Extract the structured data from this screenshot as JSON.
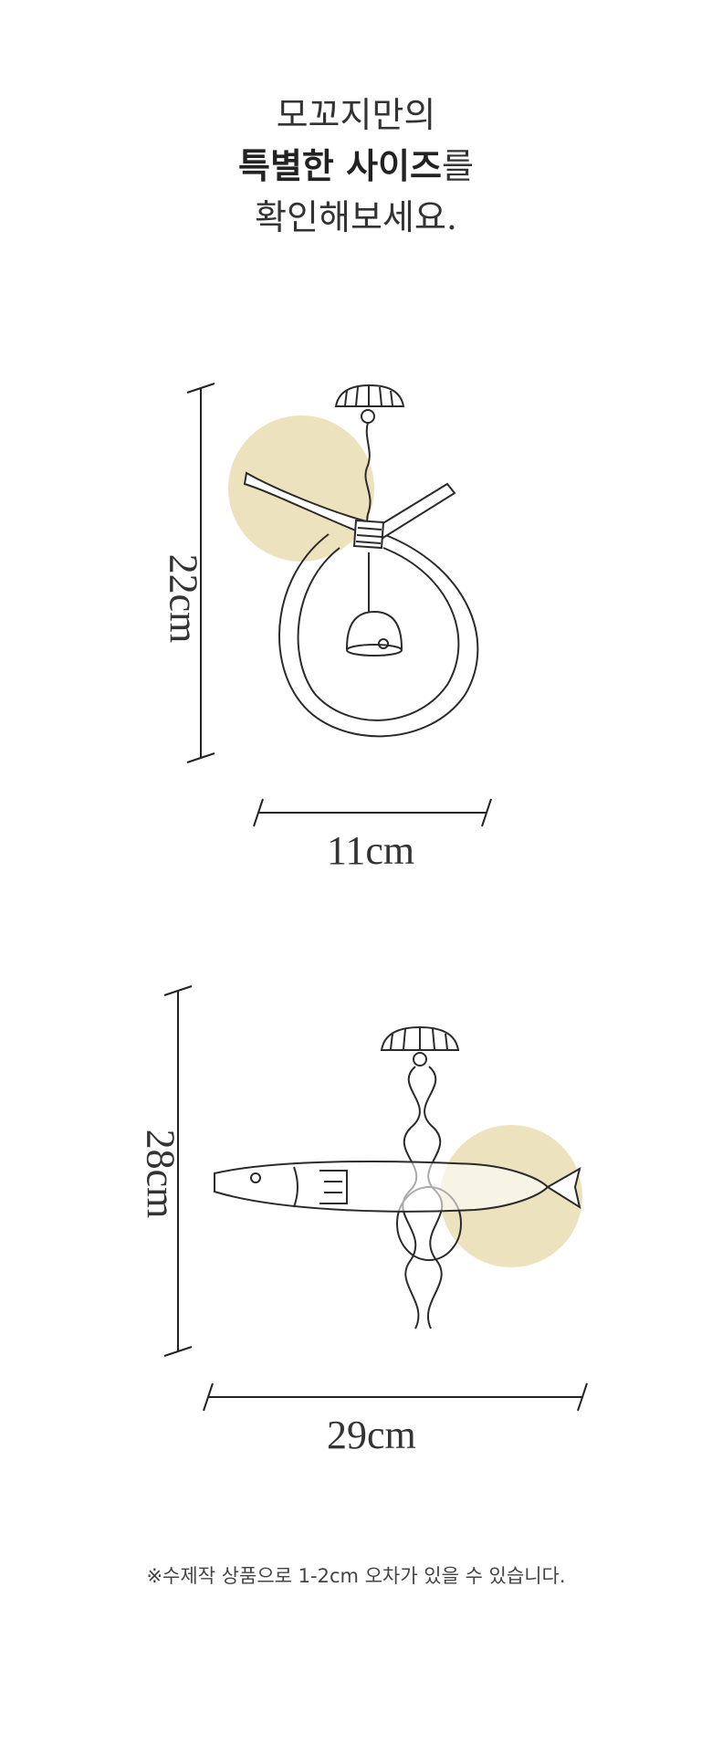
{
  "headline": {
    "line1": "모꼬지만의",
    "line2_bold": "특별한 사이즈",
    "line2_rest": "를",
    "line3": "확인해보세요."
  },
  "products": [
    {
      "height_label": "22cm",
      "width_label": "11cm",
      "accent_color": "#ece2bd",
      "icon": "bell-ring-wind-chime-icon"
    },
    {
      "height_label": "28cm",
      "width_label": "29cm",
      "accent_color": "#ece2bd",
      "icon": "fish-wind-chime-icon"
    }
  ],
  "note": "※수제작 상품으로 1-2cm 오차가 있을 수 있습니다."
}
